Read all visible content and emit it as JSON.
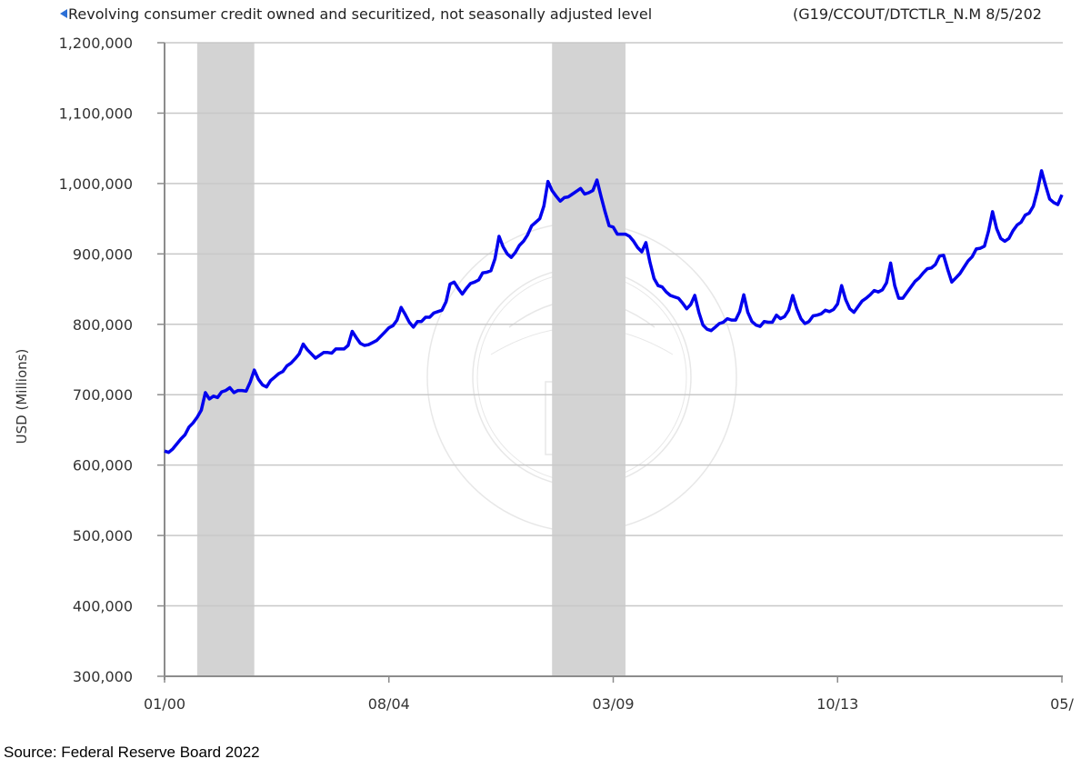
{
  "header": {
    "title": "Revolving consumer credit owned and securitized, not seasonally adjusted level",
    "series_code": "(G19/CCOUT/DTCTLR_N.M 8/5/202",
    "collapse_icon": "triangle-left-icon"
  },
  "footer": {
    "source": "Source: Federal Reserve Board 2022"
  },
  "watermark": "Board of Governors of the Federal Reserve System seal",
  "colors": {
    "line": "#0000ee",
    "recession": "#d3d3d3",
    "grid": "#c8c8c8",
    "axis": "#8c8c8c",
    "text": "#333333"
  },
  "chart_data": {
    "type": "line",
    "title": "Revolving consumer credit owned and securitized, not seasonally adjusted level",
    "xlabel": "",
    "ylabel": "USD (Millions)",
    "ylim": [
      300000,
      1200000
    ],
    "yticks": [
      300000,
      400000,
      500000,
      600000,
      700000,
      800000,
      900000,
      1000000,
      1100000,
      1200000
    ],
    "ytick_labels": [
      "300,000",
      "400,000",
      "500,000",
      "600,000",
      "700,000",
      "800,000",
      "900,000",
      "1,000,000",
      "1,100,000",
      "1,200,000"
    ],
    "xtick_labels": [
      "01/00",
      "08/04",
      "03/09",
      "10/13",
      "05/"
    ],
    "xtick_months": [
      0,
      55,
      110,
      165,
      220
    ],
    "x_start": "2000-01",
    "x_end_month_index": 220,
    "grid": true,
    "legend": null,
    "recessions": [
      {
        "start": "2001-03",
        "end": "2001-11",
        "start_month": 8,
        "end_month": 22
      },
      {
        "start": "2007-12",
        "end": "2009-06",
        "start_month": 95,
        "end_month": 113
      }
    ],
    "series": [
      {
        "name": "Revolving consumer credit (USD Millions)",
        "points": [
          [
            0,
            620000
          ],
          [
            1,
            618000
          ],
          [
            2,
            623000
          ],
          [
            3,
            630000
          ],
          [
            4,
            637000
          ],
          [
            5,
            643000
          ],
          [
            6,
            654000
          ],
          [
            7,
            660000
          ],
          [
            8,
            668000
          ],
          [
            9,
            678000
          ],
          [
            10,
            703000
          ],
          [
            11,
            694000
          ],
          [
            12,
            698000
          ],
          [
            13,
            696000
          ],
          [
            14,
            704000
          ],
          [
            15,
            706000
          ],
          [
            16,
            710000
          ],
          [
            17,
            703000
          ],
          [
            18,
            706000
          ],
          [
            19,
            706000
          ],
          [
            20,
            705000
          ],
          [
            21,
            718000
          ],
          [
            22,
            735000
          ],
          [
            23,
            722000
          ],
          [
            24,
            714000
          ],
          [
            25,
            711000
          ],
          [
            26,
            720000
          ],
          [
            27,
            725000
          ],
          [
            28,
            730000
          ],
          [
            29,
            733000
          ],
          [
            30,
            741000
          ],
          [
            31,
            745000
          ],
          [
            32,
            751000
          ],
          [
            33,
            758000
          ],
          [
            34,
            772000
          ],
          [
            35,
            764000
          ],
          [
            36,
            758000
          ],
          [
            37,
            752000
          ],
          [
            38,
            756000
          ],
          [
            39,
            760000
          ],
          [
            40,
            760000
          ],
          [
            41,
            759000
          ],
          [
            42,
            765000
          ],
          [
            43,
            765000
          ],
          [
            44,
            765000
          ],
          [
            45,
            770000
          ],
          [
            46,
            790000
          ],
          [
            47,
            781000
          ],
          [
            48,
            773000
          ],
          [
            49,
            770000
          ],
          [
            50,
            771000
          ],
          [
            51,
            774000
          ],
          [
            52,
            777000
          ],
          [
            53,
            783000
          ],
          [
            54,
            789000
          ],
          [
            55,
            795000
          ],
          [
            56,
            798000
          ],
          [
            57,
            806000
          ],
          [
            58,
            824000
          ],
          [
            59,
            814000
          ],
          [
            60,
            803000
          ],
          [
            61,
            796000
          ],
          [
            62,
            804000
          ],
          [
            63,
            804000
          ],
          [
            64,
            810000
          ],
          [
            65,
            810000
          ],
          [
            66,
            816000
          ],
          [
            67,
            818000
          ],
          [
            68,
            820000
          ],
          [
            69,
            832000
          ],
          [
            70,
            857000
          ],
          [
            71,
            860000
          ],
          [
            72,
            851000
          ],
          [
            73,
            843000
          ],
          [
            74,
            851000
          ],
          [
            75,
            858000
          ],
          [
            76,
            860000
          ],
          [
            77,
            863000
          ],
          [
            78,
            873000
          ],
          [
            79,
            874000
          ],
          [
            80,
            876000
          ],
          [
            81,
            893000
          ],
          [
            82,
            925000
          ],
          [
            83,
            910000
          ],
          [
            84,
            900000
          ],
          [
            85,
            895000
          ],
          [
            86,
            902000
          ],
          [
            87,
            912000
          ],
          [
            88,
            918000
          ],
          [
            89,
            927000
          ],
          [
            90,
            940000
          ],
          [
            91,
            945000
          ],
          [
            92,
            950000
          ],
          [
            93,
            968000
          ],
          [
            94,
            1003000
          ],
          [
            95,
            990000
          ],
          [
            96,
            982000
          ],
          [
            97,
            975000
          ],
          [
            98,
            980000
          ],
          [
            99,
            981000
          ],
          [
            100,
            985000
          ],
          [
            101,
            989000
          ],
          [
            102,
            993000
          ],
          [
            103,
            985000
          ],
          [
            104,
            987000
          ],
          [
            105,
            990000
          ],
          [
            106,
            1005000
          ],
          [
            107,
            982000
          ],
          [
            108,
            960000
          ],
          [
            109,
            940000
          ],
          [
            110,
            938000
          ],
          [
            111,
            928000
          ],
          [
            112,
            928000
          ],
          [
            113,
            928000
          ],
          [
            114,
            925000
          ],
          [
            115,
            918000
          ],
          [
            116,
            909000
          ],
          [
            117,
            903000
          ],
          [
            118,
            916000
          ],
          [
            119,
            888000
          ],
          [
            120,
            865000
          ],
          [
            121,
            855000
          ],
          [
            122,
            853000
          ],
          [
            123,
            846000
          ],
          [
            124,
            841000
          ],
          [
            125,
            839000
          ],
          [
            126,
            837000
          ],
          [
            127,
            830000
          ],
          [
            128,
            822000
          ],
          [
            129,
            828000
          ],
          [
            130,
            841000
          ],
          [
            131,
            817000
          ],
          [
            132,
            799000
          ],
          [
            133,
            793000
          ],
          [
            134,
            791000
          ],
          [
            135,
            796000
          ],
          [
            136,
            801000
          ],
          [
            137,
            803000
          ],
          [
            138,
            808000
          ],
          [
            139,
            806000
          ],
          [
            140,
            806000
          ],
          [
            141,
            818000
          ],
          [
            142,
            842000
          ],
          [
            143,
            817000
          ],
          [
            144,
            804000
          ],
          [
            145,
            799000
          ],
          [
            146,
            797000
          ],
          [
            147,
            804000
          ],
          [
            148,
            803000
          ],
          [
            149,
            803000
          ],
          [
            150,
            813000
          ],
          [
            151,
            808000
          ],
          [
            152,
            811000
          ],
          [
            153,
            820000
          ],
          [
            154,
            841000
          ],
          [
            155,
            822000
          ],
          [
            156,
            808000
          ],
          [
            157,
            801000
          ],
          [
            158,
            804000
          ],
          [
            159,
            812000
          ],
          [
            160,
            813000
          ],
          [
            161,
            815000
          ],
          [
            162,
            820000
          ],
          [
            163,
            818000
          ],
          [
            164,
            821000
          ],
          [
            165,
            829000
          ],
          [
            166,
            855000
          ],
          [
            167,
            835000
          ],
          [
            168,
            822000
          ],
          [
            169,
            817000
          ],
          [
            170,
            825000
          ],
          [
            171,
            833000
          ],
          [
            172,
            837000
          ],
          [
            173,
            842000
          ],
          [
            174,
            848000
          ],
          [
            175,
            846000
          ],
          [
            176,
            849000
          ],
          [
            177,
            859000
          ],
          [
            178,
            887000
          ],
          [
            179,
            855000
          ],
          [
            180,
            837000
          ],
          [
            181,
            837000
          ],
          [
            182,
            845000
          ],
          [
            183,
            853000
          ],
          [
            184,
            861000
          ],
          [
            185,
            866000
          ],
          [
            186,
            873000
          ],
          [
            187,
            879000
          ],
          [
            188,
            880000
          ],
          [
            189,
            885000
          ],
          [
            190,
            897000
          ],
          [
            191,
            898000
          ],
          [
            192,
            878000
          ],
          [
            193,
            860000
          ],
          [
            194,
            866000
          ],
          [
            195,
            872000
          ],
          [
            196,
            881000
          ],
          [
            197,
            890000
          ],
          [
            198,
            896000
          ],
          [
            199,
            907000
          ],
          [
            200,
            908000
          ],
          [
            201,
            911000
          ],
          [
            202,
            932000
          ],
          [
            203,
            960000
          ],
          [
            204,
            936000
          ],
          [
            205,
            922000
          ],
          [
            206,
            918000
          ],
          [
            207,
            922000
          ],
          [
            208,
            933000
          ],
          [
            209,
            941000
          ],
          [
            210,
            945000
          ],
          [
            211,
            955000
          ],
          [
            212,
            958000
          ],
          [
            213,
            968000
          ],
          [
            214,
            990000
          ],
          [
            215,
            1018000
          ],
          [
            216,
            997000
          ],
          [
            217,
            978000
          ],
          [
            218,
            973000
          ],
          [
            219,
            970000
          ],
          [
            220,
            984000
          ]
        ]
      }
    ]
  }
}
